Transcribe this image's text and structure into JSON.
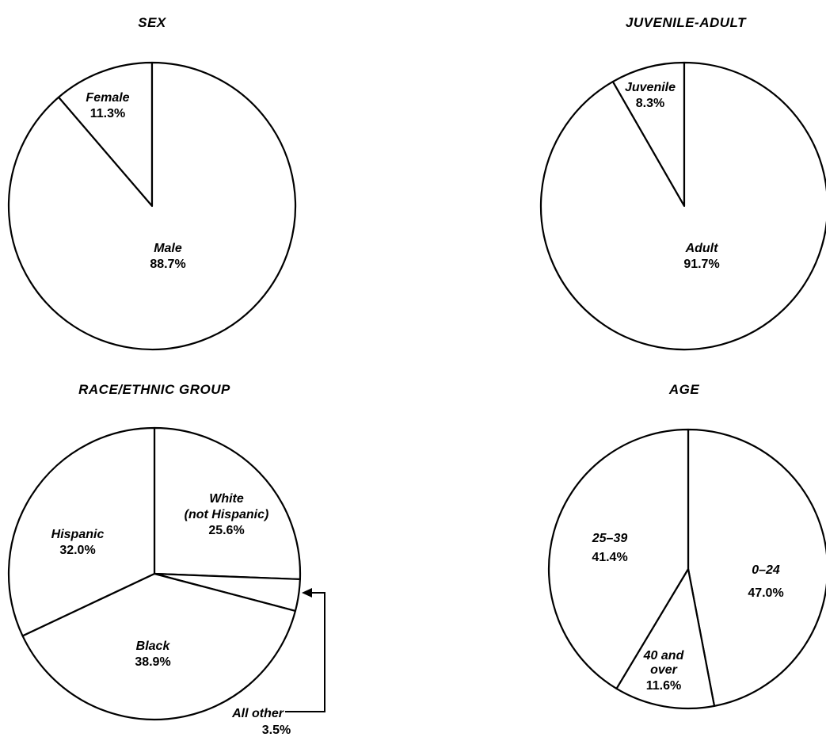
{
  "chart_data": [
    {
      "type": "pie",
      "title": "SEX",
      "start_angle_deg": 0,
      "direction": "counterclockwise",
      "slices": [
        {
          "name": "Female",
          "value": 11.3,
          "label": "11.3%"
        },
        {
          "name": "Male",
          "value": 88.7,
          "label": "88.7%"
        }
      ]
    },
    {
      "type": "pie",
      "title": "JUVENILE-ADULT",
      "start_angle_deg": 0,
      "direction": "counterclockwise",
      "slices": [
        {
          "name": "Juvenile",
          "value": 8.3,
          "label": "8.3%"
        },
        {
          "name": "Adult",
          "value": 91.7,
          "label": "91.7%"
        }
      ]
    },
    {
      "type": "pie",
      "title": "RACE/ETHNIC GROUP",
      "start_angle_deg": 0,
      "direction": "clockwise",
      "slices": [
        {
          "name": "White",
          "name_line2": "(not Hispanic)",
          "value": 25.6,
          "label": "25.6%"
        },
        {
          "name": "All other",
          "value": 3.5,
          "label": "3.5%",
          "callout": true
        },
        {
          "name": "Black",
          "value": 38.9,
          "label": "38.9%"
        },
        {
          "name": "Hispanic",
          "value": 32.0,
          "label": "32.0%"
        }
      ]
    },
    {
      "type": "pie",
      "title": "AGE",
      "start_angle_deg": 0,
      "direction": "clockwise",
      "slices": [
        {
          "name": "0–24",
          "value": 47.0,
          "label": "47.0%"
        },
        {
          "name": "40 and",
          "name_line2": "over",
          "value": 11.6,
          "label": "11.6%"
        },
        {
          "name": "25–39",
          "value": 41.4,
          "label": "41.4%"
        }
      ]
    }
  ]
}
